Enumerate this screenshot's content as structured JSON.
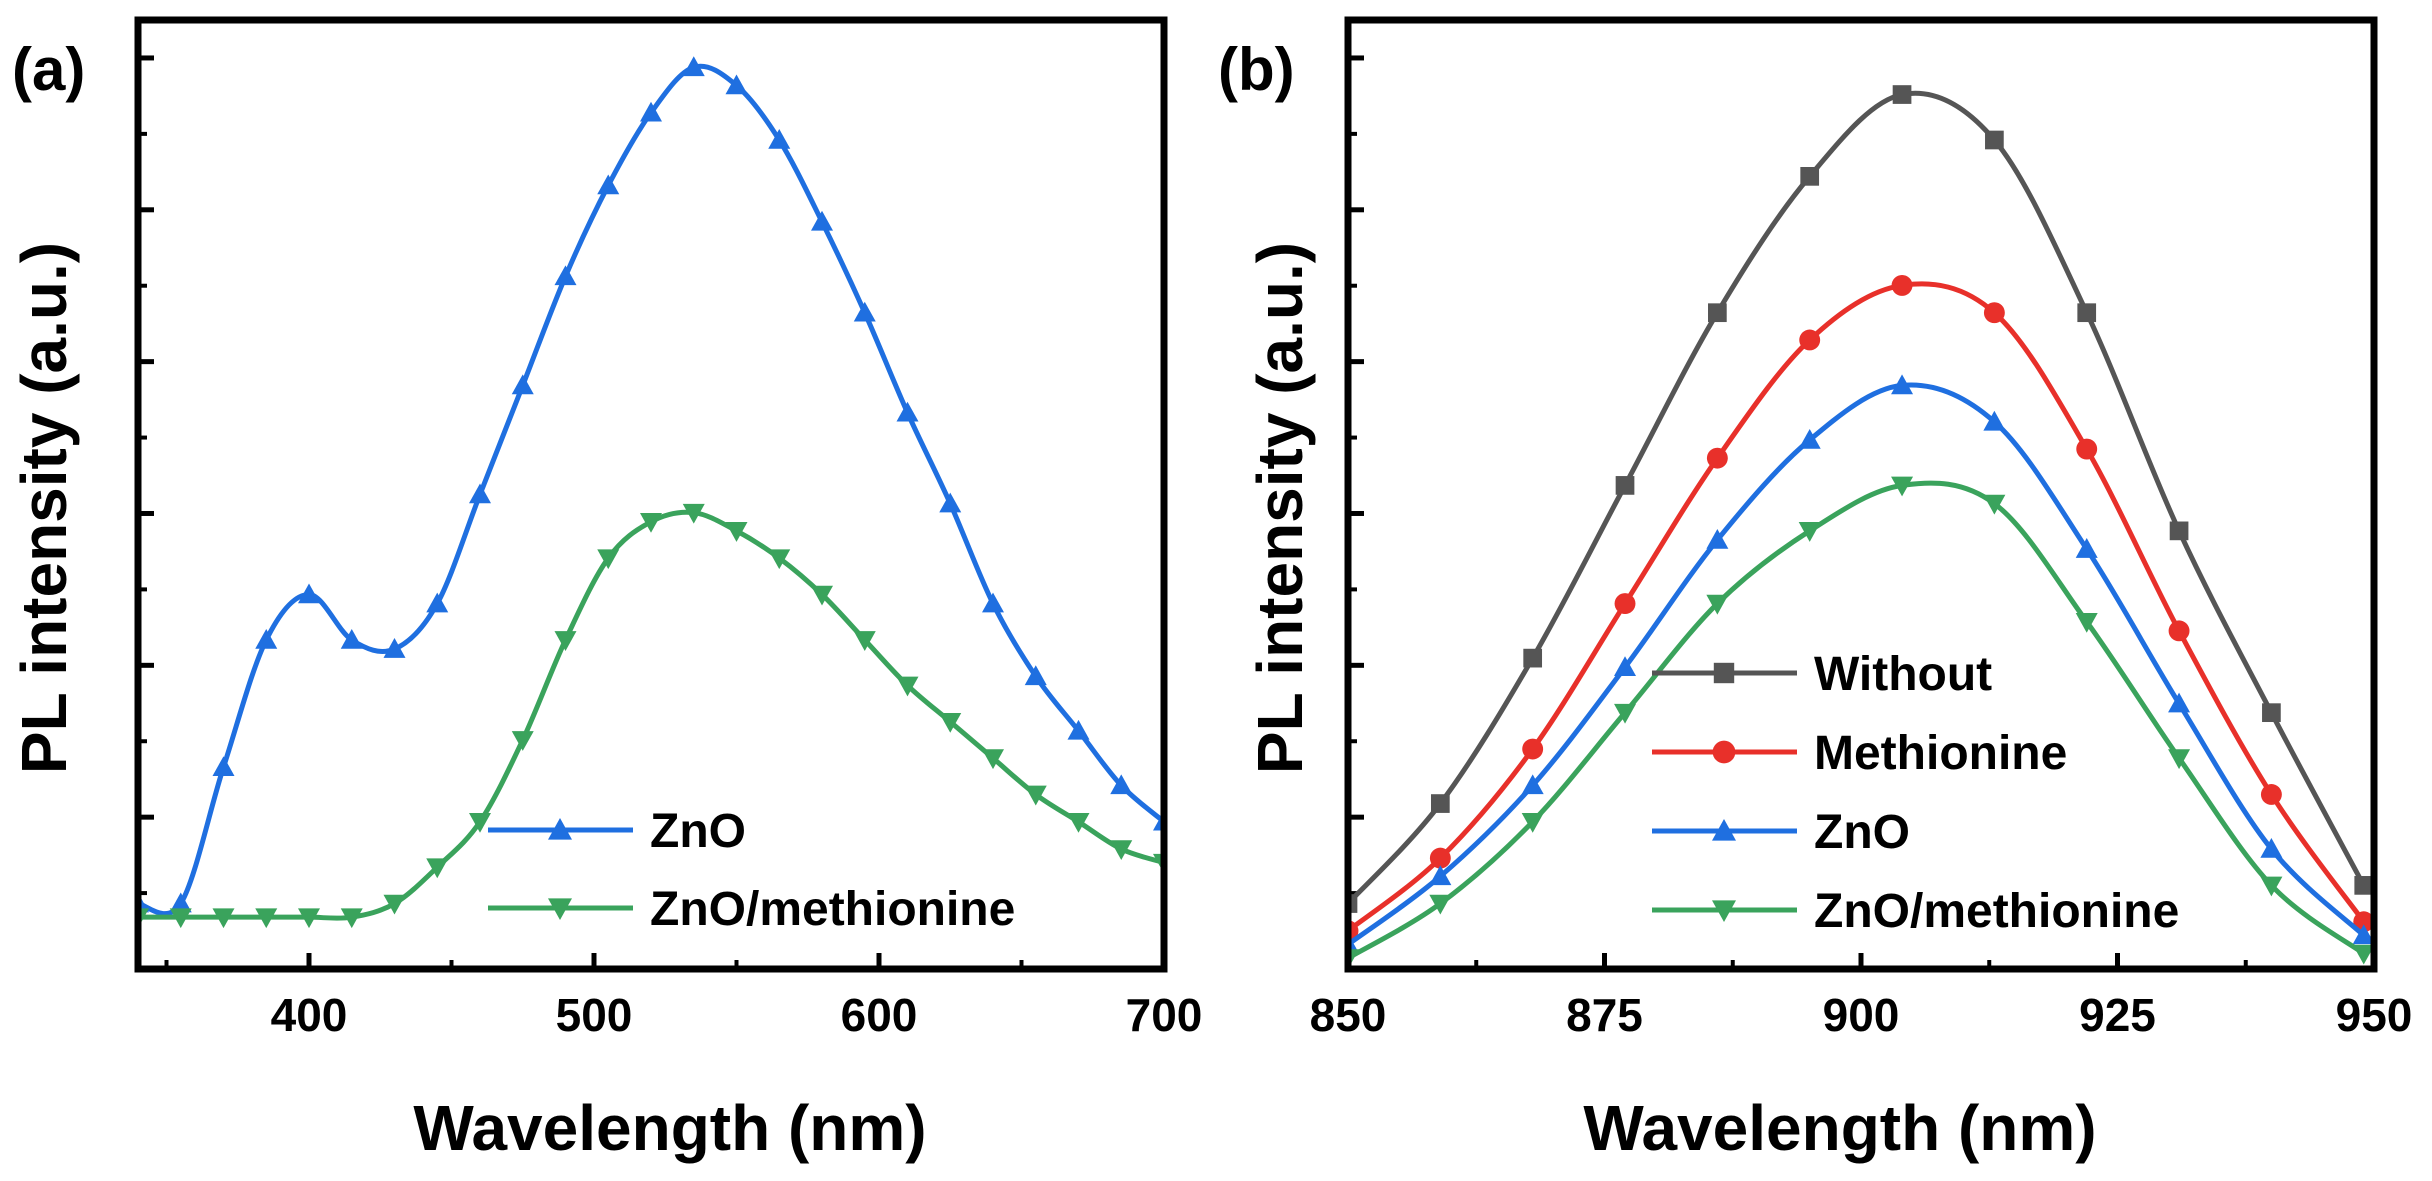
{
  "chart_data": [
    {
      "type": "line",
      "panel_label": "(a)",
      "xlabel": "Wavelength (nm)",
      "ylabel": "PL intensity (a.u.)",
      "xlim": [
        340,
        700
      ],
      "ylim": [
        0,
        100
      ],
      "xticks": [
        400,
        500,
        600,
        700
      ],
      "ytick_labels_shown": false,
      "grid": false,
      "legend_position": "bottom-right",
      "series": [
        {
          "name": "ZnO",
          "color": "#1f6fe0",
          "marker": "triangle-up",
          "x": [
            340,
            355,
            370,
            385,
            400,
            415,
            430,
            445,
            460,
            475,
            490,
            505,
            520,
            535,
            550,
            565,
            580,
            595,
            610,
            625,
            640,
            655,
            670,
            685,
            700
          ],
          "y": [
            5,
            5,
            20,
            34,
            39,
            34,
            33,
            38,
            50,
            62,
            74,
            84,
            92,
            97,
            95,
            89,
            80,
            70,
            59,
            49,
            38,
            30,
            24,
            18,
            14
          ]
        },
        {
          "name": "ZnO/methionine",
          "color": "#3aa35c",
          "marker": "triangle-down",
          "x": [
            340,
            355,
            370,
            385,
            400,
            415,
            430,
            445,
            460,
            475,
            490,
            505,
            520,
            535,
            550,
            565,
            580,
            595,
            610,
            625,
            640,
            655,
            670,
            685,
            700
          ],
          "y": [
            3.5,
            3.5,
            3.5,
            3.5,
            3.5,
            3.5,
            5,
            9,
            14,
            23,
            34,
            43,
            47,
            48,
            46,
            43,
            39,
            34,
            29,
            25,
            21,
            17,
            14,
            11,
            9.5
          ]
        }
      ]
    },
    {
      "type": "line",
      "panel_label": "(b)",
      "xlabel": "Wavelength (nm)",
      "ylabel": "PL intensity (a.u.)",
      "xlim": [
        850,
        950
      ],
      "ylim": [
        0,
        100
      ],
      "xticks": [
        850,
        875,
        900,
        925,
        950
      ],
      "ytick_labels_shown": false,
      "grid": false,
      "legend_position": "bottom-center",
      "series": [
        {
          "name": "Without",
          "color": "#555555",
          "marker": "square",
          "x": [
            850,
            859,
            868,
            877,
            886,
            895,
            904,
            913,
            922,
            931,
            940,
            949
          ],
          "y": [
            5,
            16,
            32,
            51,
            70,
            85,
            94,
            89,
            70,
            46,
            26,
            7
          ]
        },
        {
          "name": "Methionine",
          "color": "#e8302a",
          "marker": "circle",
          "x": [
            850,
            859,
            868,
            877,
            886,
            895,
            904,
            913,
            922,
            931,
            940,
            949
          ],
          "y": [
            2,
            10,
            22,
            38,
            54,
            67,
            73,
            70,
            55,
            35,
            17,
            3
          ]
        },
        {
          "name": "ZnO",
          "color": "#1f6fe0",
          "marker": "triangle-up",
          "x": [
            850,
            859,
            868,
            877,
            886,
            895,
            904,
            913,
            922,
            931,
            940,
            949
          ],
          "y": [
            0.5,
            8,
            18,
            31,
            45,
            56,
            62,
            58,
            44,
            27,
            11,
            1.5
          ]
        },
        {
          "name": "ZnO/methionine",
          "color": "#3aa35c",
          "marker": "triangle-down",
          "x": [
            850,
            859,
            868,
            877,
            886,
            895,
            904,
            913,
            922,
            931,
            940,
            949
          ],
          "y": [
            -1,
            5,
            14,
            26,
            38,
            46,
            51,
            49,
            36,
            21,
            7,
            -0.5
          ]
        }
      ]
    }
  ]
}
